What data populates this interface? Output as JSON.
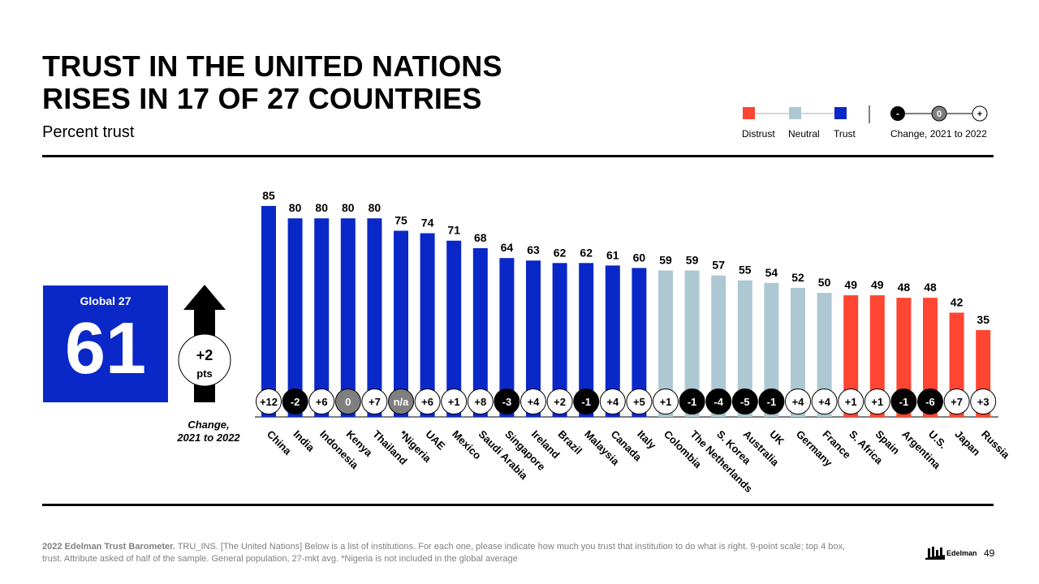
{
  "title_line1": "TRUST IN THE UNITED NATIONS",
  "title_line2": "RISES IN 17 OF 27 COUNTRIES",
  "subtitle": "Percent trust",
  "legend": {
    "distrust": "Distrust",
    "neutral": "Neutral",
    "trust": "Trust",
    "change_label": "Change, 2021 to 2022",
    "neg_symbol": "-",
    "zero_symbol": "0",
    "pos_symbol": "+"
  },
  "colors": {
    "trust": "#0a28c8",
    "neutral": "#adc8d2",
    "distrust": "#ff4633",
    "change_negative": "#000000",
    "change_zero": "#7f7f7f",
    "change_positive": "#ffffff"
  },
  "global": {
    "label": "Global 27",
    "value": "61",
    "change": "+2",
    "change_unit": "pts",
    "caption_line1": "Change,",
    "caption_line2": "2021 to 2022"
  },
  "chart_data": {
    "type": "bar",
    "title": "Trust in the United Nations",
    "ylabel": "Percent trust",
    "ylim": [
      0,
      100
    ],
    "categories": [
      "China",
      "India",
      "Indonesia",
      "Kenya",
      "Thailand",
      "*Nigeria",
      "UAE",
      "Mexico",
      "Saudi Arabia",
      "Singapore",
      "Ireland",
      "Brazil",
      "Malaysia",
      "Canada",
      "Italy",
      "Colombia",
      "The Netherlands",
      "S. Korea",
      "Australia",
      "UK",
      "Germany",
      "France",
      "S. Africa",
      "Spain",
      "Argentina",
      "U.S.",
      "Japan",
      "Russia"
    ],
    "values": [
      85,
      80,
      80,
      80,
      80,
      75,
      74,
      71,
      68,
      64,
      63,
      62,
      62,
      61,
      60,
      59,
      59,
      57,
      55,
      54,
      52,
      50,
      49,
      49,
      48,
      48,
      42,
      35
    ],
    "trust_level": [
      "trust",
      "trust",
      "trust",
      "trust",
      "trust",
      "trust",
      "trust",
      "trust",
      "trust",
      "trust",
      "trust",
      "trust",
      "trust",
      "trust",
      "trust",
      "neutral",
      "neutral",
      "neutral",
      "neutral",
      "neutral",
      "neutral",
      "neutral",
      "distrust",
      "distrust",
      "distrust",
      "distrust",
      "distrust",
      "distrust"
    ],
    "change_2021_to_2022": [
      "+12",
      "-2",
      "+6",
      "0",
      "+7",
      "n/a",
      "+6",
      "+1",
      "+8",
      "-3",
      "+4",
      "+2",
      "-1",
      "+4",
      "+5",
      "+1",
      "-1",
      "-4",
      "-5",
      "-1",
      "+4",
      "+4",
      "+1",
      "+1",
      "-1",
      "-6",
      "+7",
      "+3"
    ]
  },
  "footnote_bold": "2022 Edelman Trust Barometer.",
  "footnote_text": " TRU_INS. [The United Nations] Below is a list of institutions. For each one, please indicate how much you trust that institution to do what is right. 9-point scale; top 4 box, trust. Attribute asked of half of the sample. General population, 27-mkt avg. *Nigeria is not included in the global average",
  "brand": "Edelman",
  "page_number": "49"
}
